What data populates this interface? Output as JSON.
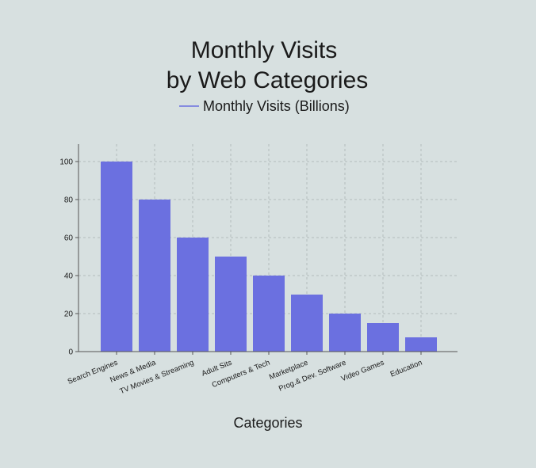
{
  "chart_data": {
    "type": "bar",
    "title_lines": [
      "Monthly Visits",
      "by Web Categories"
    ],
    "legend": {
      "label": "Monthly Visits (Billions)",
      "placement": "top-center"
    },
    "xlabel": "Categories",
    "ylabel": "",
    "categories": [
      "Search Engines",
      "News & Media",
      "TV Movies & Streaming",
      "Adult Sits",
      "Computers & Tech",
      "Marketplace",
      "Prog.& Dev. Software",
      "Video Games",
      "Education"
    ],
    "series": [
      {
        "name": "Monthly Visits (Billions)",
        "values": [
          100,
          80,
          60,
          50,
          40,
          30,
          20,
          15,
          7.5
        ]
      }
    ],
    "ylim": [
      0,
      100
    ],
    "yticks": [
      "0",
      "20",
      "40",
      "60",
      "80",
      "100"
    ],
    "grid": true,
    "colors": {
      "background": "#d7e0e0",
      "bar": "#6b70e0",
      "text": "#1a1a1a",
      "axis": "#555555",
      "grid": "#b3bdbd"
    }
  }
}
